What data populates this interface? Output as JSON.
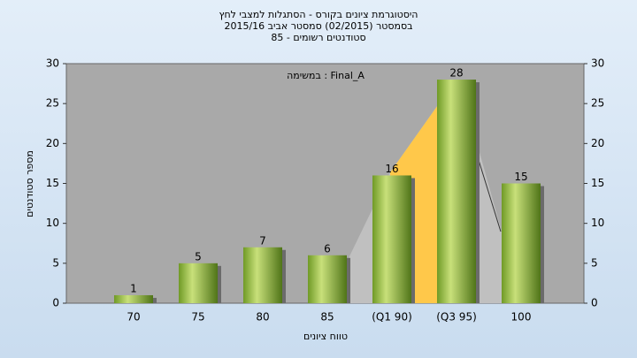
{
  "chart_data": {
    "type": "bar",
    "title": [
      "היסטוגרמת ציונים בקורס - הסתגלות למצבי לחץ",
      "בסמסטר  (02/2015)  סמסטר אביב 2015/16",
      "סטודנטים רשומים - 85"
    ],
    "annotation": "במשימה : Final_A",
    "x_label": "טווח ציונים",
    "y_label": "מספר סטודנטים",
    "categories": [
      "70",
      "75",
      "80",
      "85",
      "(Q1 90)",
      "(Q3 95)",
      "100"
    ],
    "values": [
      1,
      5,
      7,
      6,
      16,
      28,
      15
    ],
    "color": "#8db33a",
    "ylim": [
      0,
      30
    ],
    "yticks": [
      0,
      5,
      10,
      15,
      20,
      25,
      30
    ],
    "y2lim": [
      0,
      30
    ],
    "y2ticks": [
      0,
      5,
      10,
      15,
      20,
      25,
      30
    ],
    "grid": false
  }
}
